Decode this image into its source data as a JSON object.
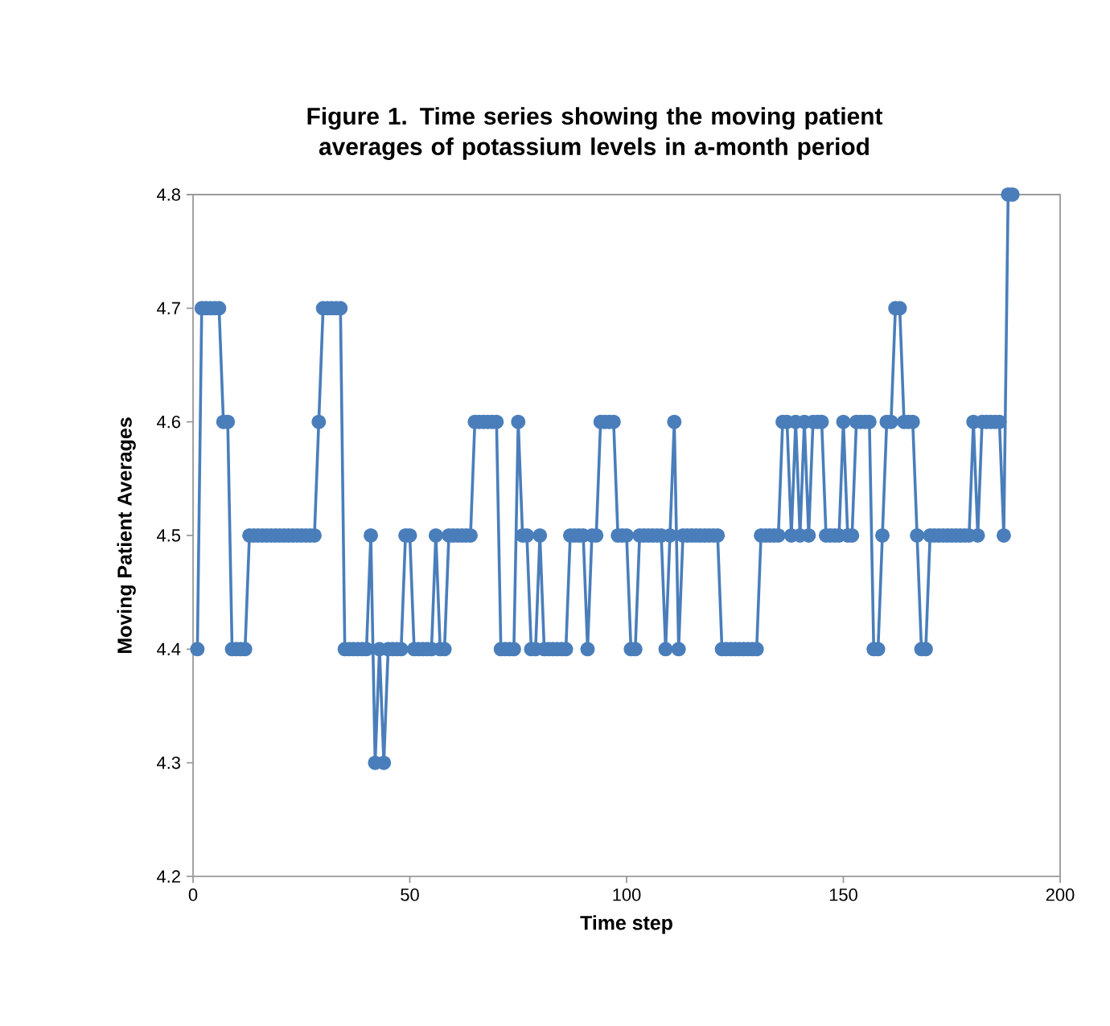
{
  "chart_data": {
    "type": "line",
    "title": "Figure 1. Time series showing the moving patient averages of potassium levels in a-month period",
    "xlabel": "Time step",
    "ylabel": "Moving Patient Averages",
    "xlim": [
      0,
      200
    ],
    "xticks": [
      0,
      50,
      100,
      150,
      200
    ],
    "ylim": [
      4.2,
      4.8
    ],
    "yticks": [
      4.2,
      4.3,
      4.4,
      4.5,
      4.6,
      4.7,
      4.8
    ],
    "marker": "circle",
    "line_style": "solid",
    "series": [
      {
        "color": "#4a7ebb",
        "x": [
          1,
          2,
          3,
          4,
          5,
          6,
          7,
          8,
          9,
          10,
          11,
          12,
          13,
          14,
          15,
          16,
          17,
          18,
          19,
          20,
          21,
          22,
          23,
          24,
          25,
          26,
          27,
          28,
          29,
          30,
          31,
          32,
          33,
          34,
          35,
          36,
          37,
          38,
          39,
          40,
          41,
          42,
          43,
          44,
          45,
          46,
          47,
          48,
          49,
          50,
          51,
          52,
          53,
          54,
          55,
          56,
          57,
          58,
          59,
          60,
          61,
          62,
          63,
          64,
          65,
          66,
          67,
          68,
          69,
          70,
          71,
          72,
          73,
          74,
          75,
          76,
          77,
          78,
          79,
          80,
          81,
          82,
          83,
          84,
          85,
          86,
          87,
          88,
          89,
          90,
          91,
          92,
          93,
          94,
          95,
          96,
          97,
          98,
          99,
          100,
          101,
          102,
          103,
          104,
          105,
          106,
          107,
          108,
          109,
          110,
          111,
          112,
          113,
          114,
          115,
          116,
          117,
          118,
          119,
          120,
          121,
          122,
          123,
          124,
          125,
          126,
          127,
          128,
          129,
          130,
          131,
          132,
          133,
          134,
          135,
          136,
          137,
          138,
          139,
          140,
          141,
          142,
          143,
          144,
          145,
          146,
          147,
          148,
          149,
          150,
          151,
          152,
          153,
          154,
          155,
          156,
          157,
          158,
          159,
          160,
          161,
          162,
          163,
          164,
          165,
          166,
          167,
          168,
          169,
          170,
          171,
          172,
          173,
          174,
          175,
          176,
          177,
          178,
          179,
          180,
          181,
          182,
          183,
          184,
          185,
          186,
          187,
          188,
          189
        ],
        "values": [
          4.4,
          4.7,
          4.7,
          4.7,
          4.7,
          4.7,
          4.6,
          4.6,
          4.4,
          4.4,
          4.4,
          4.4,
          4.5,
          4.5,
          4.5,
          4.5,
          4.5,
          4.5,
          4.5,
          4.5,
          4.5,
          4.5,
          4.5,
          4.5,
          4.5,
          4.5,
          4.5,
          4.5,
          4.6,
          4.7,
          4.7,
          4.7,
          4.7,
          4.7,
          4.4,
          4.4,
          4.4,
          4.4,
          4.4,
          4.4,
          4.5,
          4.3,
          4.4,
          4.3,
          4.4,
          4.4,
          4.4,
          4.4,
          4.5,
          4.5,
          4.4,
          4.4,
          4.4,
          4.4,
          4.4,
          4.5,
          4.4,
          4.4,
          4.5,
          4.5,
          4.5,
          4.5,
          4.5,
          4.5,
          4.6,
          4.6,
          4.6,
          4.6,
          4.6,
          4.6,
          4.4,
          4.4,
          4.4,
          4.4,
          4.6,
          4.5,
          4.5,
          4.4,
          4.4,
          4.5,
          4.4,
          4.4,
          4.4,
          4.4,
          4.4,
          4.4,
          4.5,
          4.5,
          4.5,
          4.5,
          4.4,
          4.5,
          4.5,
          4.6,
          4.6,
          4.6,
          4.6,
          4.5,
          4.5,
          4.5,
          4.4,
          4.4,
          4.5,
          4.5,
          4.5,
          4.5,
          4.5,
          4.5,
          4.4,
          4.5,
          4.6,
          4.4,
          4.5,
          4.5,
          4.5,
          4.5,
          4.5,
          4.5,
          4.5,
          4.5,
          4.5,
          4.4,
          4.4,
          4.4,
          4.4,
          4.4,
          4.4,
          4.4,
          4.4,
          4.4,
          4.5,
          4.5,
          4.5,
          4.5,
          4.5,
          4.6,
          4.6,
          4.5,
          4.6,
          4.5,
          4.6,
          4.5,
          4.6,
          4.6,
          4.6,
          4.5,
          4.5,
          4.5,
          4.5,
          4.6,
          4.5,
          4.5,
          4.6,
          4.6,
          4.6,
          4.6,
          4.4,
          4.4,
          4.5,
          4.6,
          4.6,
          4.7,
          4.7,
          4.6,
          4.6,
          4.6,
          4.5,
          4.4,
          4.4,
          4.5,
          4.5,
          4.5,
          4.5,
          4.5,
          4.5,
          4.5,
          4.5,
          4.5,
          4.5,
          4.6,
          4.5,
          4.6,
          4.6,
          4.6,
          4.6,
          4.6,
          4.5,
          4.8,
          4.8
        ]
      }
    ]
  }
}
